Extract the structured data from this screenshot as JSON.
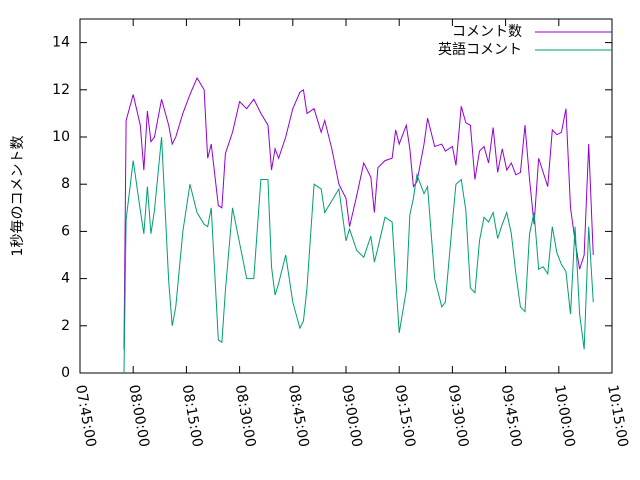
{
  "chart_data": {
    "type": "line",
    "y_label": "1秒毎のコメント数",
    "x": [
      "07:57:24",
      "07:58:00",
      "08:00:00",
      "08:02:00",
      "08:03:00",
      "08:04:00",
      "08:05:00",
      "08:06:00",
      "08:08:00",
      "08:10:00",
      "08:11:00",
      "08:12:00",
      "08:14:00",
      "08:16:00",
      "08:18:00",
      "08:20:00",
      "08:21:00",
      "08:22:00",
      "08:24:00",
      "08:25:00",
      "08:26:00",
      "08:28:00",
      "08:30:00",
      "08:32:00",
      "08:34:00",
      "08:36:00",
      "08:38:00",
      "08:39:00",
      "08:40:00",
      "08:41:00",
      "08:43:00",
      "08:45:00",
      "08:47:00",
      "08:48:00",
      "08:49:00",
      "08:51:00",
      "08:53:00",
      "08:54:00",
      "08:56:00",
      "08:58:00",
      "09:00:00",
      "09:01:00",
      "09:03:00",
      "09:05:00",
      "09:07:00",
      "09:08:00",
      "09:09:00",
      "09:11:00",
      "09:13:00",
      "09:14:00",
      "09:15:00",
      "09:17:00",
      "09:18:00",
      "09:19:00",
      "09:20:00",
      "09:22:00",
      "09:23:00",
      "09:25:00",
      "09:27:00",
      "09:28:00",
      "09:30:00",
      "09:31:00",
      "09:32:30",
      "09:33:47",
      "09:35:04",
      "09:36:21",
      "09:37:38",
      "09:38:55",
      "09:40:12",
      "09:41:29",
      "09:42:46",
      "09:44:03",
      "09:45:20",
      "09:46:37",
      "09:47:54",
      "09:49:11",
      "09:50:28",
      "09:51:45",
      "09:53:02",
      "09:54:19",
      "09:55:36",
      "09:56:53",
      "09:58:10",
      "09:59:27",
      "10:00:44",
      "10:02:01",
      "10:03:18",
      "10:04:35",
      "10:05:52",
      "10:07:09",
      "10:08:26",
      "10:09:43"
    ],
    "series": [
      {
        "name": "コメント数",
        "color": "#9400d3",
        "values": [
          1,
          10.7,
          11.8,
          10.5,
          8.6,
          11.1,
          9.8,
          10,
          11.6,
          10.5,
          9.7,
          10,
          11,
          11.8,
          12.5,
          12,
          9.1,
          9.7,
          7.1,
          7,
          9.3,
          10.2,
          11.5,
          11.2,
          11.6,
          11,
          10.5,
          8.6,
          9.5,
          9.1,
          10,
          11.2,
          11.9,
          12,
          11,
          11.2,
          10.2,
          10.7,
          9.5,
          8,
          7.4,
          6.2,
          7.5,
          8.9,
          8.3,
          6.8,
          8.7,
          9,
          9.1,
          10.3,
          9.7,
          10.5,
          9.5,
          7.9,
          8.1,
          9.7,
          10.8,
          9.6,
          9.7,
          9.4,
          9.6,
          8.8,
          11.3,
          10.6,
          10.5,
          8.2,
          9.4,
          9.6,
          8.9,
          10.4,
          8.5,
          9.5,
          8.6,
          8.9,
          8.4,
          8.5,
          10.5,
          8.2,
          6.3,
          9.1,
          8.5,
          7.9,
          10.3,
          10.1,
          10.2,
          11.2,
          7,
          5.6,
          4.4,
          5,
          9.7,
          5
        ]
      },
      {
        "name": "英語コメント",
        "color": "#009e73",
        "values": [
          0,
          6.5,
          9,
          6.9,
          5.9,
          7.9,
          5.9,
          6.9,
          10,
          3.9,
          2,
          2.8,
          6,
          8,
          6.8,
          6.3,
          6.2,
          7,
          1.4,
          1.3,
          3.5,
          7,
          5.5,
          4,
          4,
          8.2,
          8.2,
          4.5,
          3.3,
          3.8,
          5,
          3,
          1.9,
          2.2,
          3.6,
          8,
          7.8,
          6.8,
          7.3,
          7.8,
          5.6,
          6.1,
          5.2,
          4.9,
          5.8,
          4.7,
          5.3,
          6.6,
          6.4,
          4,
          1.7,
          3.5,
          6.7,
          7.4,
          8.4,
          7.6,
          7.9,
          4,
          2.8,
          3,
          6.4,
          8,
          8.2,
          6.9,
          3.6,
          3.4,
          5.6,
          6.6,
          6.4,
          6.8,
          5.7,
          6.3,
          6.8,
          5.9,
          4.2,
          2.8,
          2.6,
          5.9,
          6.8,
          4.4,
          4.5,
          4.2,
          6.2,
          5.1,
          4.6,
          4.3,
          2.5,
          6.2,
          2.5,
          1,
          6.2,
          3
        ]
      }
    ],
    "xlim": [
      "07:45:00",
      "10:15:00"
    ],
    "xticks": [
      "07:45:00",
      "08:00:00",
      "08:15:00",
      "08:30:00",
      "08:45:00",
      "09:00:00",
      "09:15:00",
      "09:30:00",
      "09:45:00",
      "10:00:00",
      "10:15:00"
    ],
    "ylim": [
      0,
      15
    ],
    "yticks": [
      0,
      2,
      4,
      6,
      8,
      10,
      12,
      14
    ],
    "legend": "top-right"
  }
}
